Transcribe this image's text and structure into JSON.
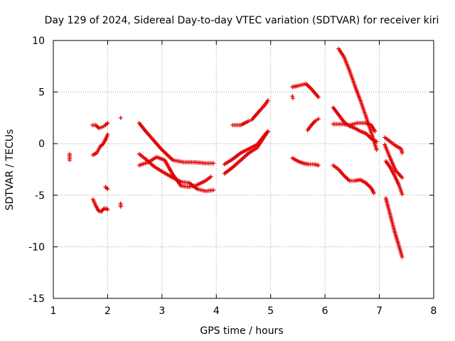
{
  "chart_data": {
    "type": "scatter",
    "title": "Day 129 of 2024, Sidereal Day-to-day VTEC variation (SDTVAR) for receiver kiri",
    "xlabel": "GPS time / hours",
    "ylabel": "SDTVAR / TECUs",
    "xlim": [
      1,
      8
    ],
    "ylim": [
      -15,
      10
    ],
    "xticks": [
      "1",
      "2",
      "3",
      "4",
      "5",
      "6",
      "7",
      "8"
    ],
    "yticks": [
      "10",
      "5",
      "0",
      "-5",
      "-10",
      "-15"
    ],
    "grid": true,
    "marker": "+",
    "color": "#e00000",
    "series": [
      {
        "name": "s1",
        "x": [
          1.3,
          1.3
        ],
        "y": [
          -1.0,
          -1.6
        ]
      },
      {
        "name": "s2",
        "x": [
          1.72,
          1.78,
          1.84,
          1.9,
          1.96,
          2.0
        ],
        "y": [
          1.8,
          1.8,
          1.5,
          1.6,
          1.8,
          2.0
        ]
      },
      {
        "name": "s3",
        "x": [
          1.73,
          1.8,
          1.86,
          1.92,
          1.97,
          2.0
        ],
        "y": [
          -1.1,
          -0.9,
          -0.3,
          0.0,
          0.5,
          0.9
        ]
      },
      {
        "name": "s4",
        "x": [
          1.96,
          2.0
        ],
        "y": [
          -4.2,
          -4.4
        ]
      },
      {
        "name": "s5",
        "x": [
          1.73,
          1.78,
          1.83,
          1.88,
          1.93,
          1.98,
          2.0
        ],
        "y": [
          -5.4,
          -6.0,
          -6.5,
          -6.6,
          -6.3,
          -6.3,
          -6.4
        ]
      },
      {
        "name": "s6",
        "x": [
          2.24
        ],
        "y": [
          2.5
        ]
      },
      {
        "name": "s7",
        "x": [
          2.24,
          2.24
        ],
        "y": [
          -5.8,
          -6.1
        ]
      },
      {
        "name": "s8",
        "x": [
          2.58,
          2.7,
          2.85,
          3.0,
          3.2,
          3.4,
          3.6,
          3.8,
          3.95
        ],
        "y": [
          2.0,
          1.2,
          0.3,
          -0.6,
          -1.6,
          -1.8,
          -1.8,
          -1.9,
          -1.9
        ]
      },
      {
        "name": "s9",
        "x": [
          2.58,
          2.7,
          2.85,
          3.0,
          3.2,
          3.35,
          3.5,
          3.65,
          3.8,
          3.95
        ],
        "y": [
          -1.0,
          -1.5,
          -2.2,
          -2.7,
          -3.3,
          -3.7,
          -3.8,
          -4.4,
          -4.6,
          -4.5
        ]
      },
      {
        "name": "s10",
        "x": [
          2.58,
          2.75,
          2.9,
          3.05,
          3.2,
          3.35,
          3.5,
          3.65,
          3.8,
          3.9
        ],
        "y": [
          -2.1,
          -1.8,
          -1.3,
          -1.6,
          -3.0,
          -4.1,
          -4.2,
          -4.0,
          -3.6,
          -3.2
        ]
      },
      {
        "name": "s11",
        "x": [
          4.15,
          4.3,
          4.45,
          4.6,
          4.75,
          4.9,
          4.95
        ],
        "y": [
          -2.9,
          -2.3,
          -1.6,
          -0.9,
          -0.4,
          0.8,
          1.2
        ]
      },
      {
        "name": "s12",
        "x": [
          4.15,
          4.3,
          4.45,
          4.6,
          4.75,
          4.9,
          4.95
        ],
        "y": [
          -2.0,
          -1.5,
          -0.9,
          -0.5,
          -0.1,
          0.9,
          1.2
        ]
      },
      {
        "name": "s13",
        "x": [
          4.65,
          4.8,
          4.9,
          4.95
        ],
        "y": [
          2.3,
          3.2,
          3.8,
          4.2
        ]
      },
      {
        "name": "s14",
        "x": [
          4.3,
          4.45,
          4.6
        ],
        "y": [
          1.8,
          1.8,
          2.2
        ]
      },
      {
        "name": "s15",
        "x": [
          5.4,
          5.5,
          5.65,
          5.75,
          5.88
        ],
        "y": [
          5.5,
          5.6,
          5.8,
          5.3,
          4.5
        ]
      },
      {
        "name": "s16",
        "x": [
          5.4,
          5.41
        ],
        "y": [
          4.6,
          4.4
        ]
      },
      {
        "name": "s17",
        "x": [
          5.68,
          5.75,
          5.82,
          5.88
        ],
        "y": [
          1.3,
          1.8,
          2.2,
          2.4
        ]
      },
      {
        "name": "s18",
        "x": [
          5.4,
          5.5,
          5.6,
          5.7,
          5.8,
          5.88
        ],
        "y": [
          -1.4,
          -1.7,
          -1.9,
          -2.0,
          -2.0,
          -2.1
        ]
      },
      {
        "name": "s19",
        "x": [
          6.25,
          6.35,
          6.45,
          6.55,
          6.65,
          6.75,
          6.85,
          6.95
        ],
        "y": [
          9.2,
          8.4,
          7.1,
          5.6,
          4.2,
          2.7,
          1.1,
          -0.6
        ]
      },
      {
        "name": "s20",
        "x": [
          6.15,
          6.25,
          6.35,
          6.45,
          6.55,
          6.65,
          6.75,
          6.85,
          6.95
        ],
        "y": [
          3.5,
          2.8,
          2.1,
          1.7,
          1.5,
          1.2,
          1.0,
          0.5,
          0.2
        ]
      },
      {
        "name": "s21",
        "x": [
          6.15,
          6.3,
          6.45,
          6.6,
          6.75,
          6.85,
          6.92
        ],
        "y": [
          1.9,
          1.9,
          1.8,
          2.0,
          2.0,
          1.8,
          1.2
        ]
      },
      {
        "name": "s22",
        "x": [
          6.15,
          6.25,
          6.35,
          6.45,
          6.55,
          6.65,
          6.75,
          6.85,
          6.9
        ],
        "y": [
          -2.1,
          -2.5,
          -3.1,
          -3.6,
          -3.6,
          -3.5,
          -3.8,
          -4.3,
          -4.8
        ]
      },
      {
        "name": "s23",
        "x": [
          7.1,
          7.2,
          7.3,
          7.4,
          7.42
        ],
        "y": [
          0.6,
          0.2,
          -0.2,
          -0.5,
          -0.9
        ]
      },
      {
        "name": "s24",
        "x": [
          7.1,
          7.2,
          7.3,
          7.42
        ],
        "y": [
          -0.1,
          -1.4,
          -2.6,
          -3.3
        ]
      },
      {
        "name": "s25",
        "x": [
          7.12,
          7.2,
          7.28,
          7.36,
          7.42
        ],
        "y": [
          -1.7,
          -2.3,
          -3.1,
          -4.0,
          -4.9
        ]
      },
      {
        "name": "s26",
        "x": [
          7.12,
          7.2,
          7.28,
          7.36,
          7.42
        ],
        "y": [
          -5.3,
          -6.9,
          -8.5,
          -9.9,
          -11.0
        ]
      }
    ]
  }
}
